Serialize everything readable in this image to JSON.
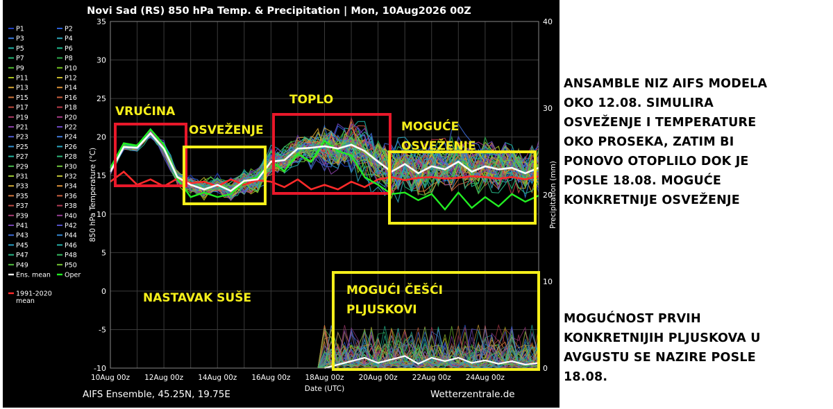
{
  "chart_data": {
    "type": "line",
    "title": "Novi Sad  (RS)  850 hPa Temp. & Precipitation | Mon, 10Aug2026 00Z",
    "xlabel": "Date (UTC)",
    "ylabel": "850 hPa Temperature (°C)",
    "y2label": "Precipitation (mm)",
    "ylim": [
      -10,
      35
    ],
    "y2lim": [
      0,
      40
    ],
    "yticks": [
      "35",
      "30",
      "25",
      "20",
      "15",
      "10",
      "5",
      "0",
      "-5",
      "-10"
    ],
    "y2ticks": [
      "40",
      "30",
      "20",
      "10",
      "0"
    ],
    "xticks": [
      "10Aug 00z",
      "12Aug 00z",
      "14Aug 00z",
      "16Aug 00z",
      "18Aug 00z",
      "20Aug 00z",
      "22Aug 00z",
      "24Aug 00z"
    ],
    "x_days": [
      0,
      16
    ],
    "footer_left": "AIFS Ensemble, 45.25N, 19.75E",
    "footer_right": "Wetterzentrale.de",
    "grid": true,
    "legend_placement": "left",
    "legend": [
      {
        "name": "P1",
        "color": "#1f3fbf"
      },
      {
        "name": "P2",
        "color": "#2b5fd6"
      },
      {
        "name": "P3",
        "color": "#3a7ce0"
      },
      {
        "name": "P4",
        "color": "#2ea6b8"
      },
      {
        "name": "P5",
        "color": "#20b4a8"
      },
      {
        "name": "P6",
        "color": "#1fbf8f"
      },
      {
        "name": "P7",
        "color": "#23b874"
      },
      {
        "name": "P8",
        "color": "#2faa4c"
      },
      {
        "name": "P9",
        "color": "#4dba2f"
      },
      {
        "name": "P10",
        "color": "#74c21f"
      },
      {
        "name": "P11",
        "color": "#a7c21c"
      },
      {
        "name": "P12",
        "color": "#c7b82a"
      },
      {
        "name": "P13",
        "color": "#d6a532"
      },
      {
        "name": "P14",
        "color": "#d88f34"
      },
      {
        "name": "P15",
        "color": "#d2763a"
      },
      {
        "name": "P16",
        "color": "#cc5e3e"
      },
      {
        "name": "P17",
        "color": "#c24a3c"
      },
      {
        "name": "P18",
        "color": "#b93a4a"
      },
      {
        "name": "P19",
        "color": "#b13a66"
      },
      {
        "name": "P20",
        "color": "#a63a86"
      },
      {
        "name": "P21",
        "color": "#8a3fa6"
      },
      {
        "name": "P22",
        "color": "#6a46c0"
      },
      {
        "name": "P23",
        "color": "#4f5bd0"
      },
      {
        "name": "P24",
        "color": "#3f78d8"
      },
      {
        "name": "P25",
        "color": "#3490d0"
      },
      {
        "name": "P26",
        "color": "#2aa6c0"
      },
      {
        "name": "P27",
        "color": "#25b6a0"
      },
      {
        "name": "P28",
        "color": "#2bb67a"
      },
      {
        "name": "P29",
        "color": "#48bd4e"
      },
      {
        "name": "P30",
        "color": "#6fc63c"
      },
      {
        "name": "P31",
        "color": "#9ac832"
      },
      {
        "name": "P32",
        "color": "#bcbf34"
      },
      {
        "name": "P33",
        "color": "#d2ac36"
      },
      {
        "name": "P34",
        "color": "#dc923a"
      },
      {
        "name": "P35",
        "color": "#d6783c"
      },
      {
        "name": "P36",
        "color": "#cc6040"
      },
      {
        "name": "P37",
        "color": "#c04c44"
      },
      {
        "name": "P38",
        "color": "#b43c56"
      },
      {
        "name": "P39",
        "color": "#a83c74"
      },
      {
        "name": "P40",
        "color": "#943e94"
      },
      {
        "name": "P41",
        "color": "#7444b0"
      },
      {
        "name": "P42",
        "color": "#5250c8"
      },
      {
        "name": "P43",
        "color": "#3c6ad4"
      },
      {
        "name": "P44",
        "color": "#3286d0"
      },
      {
        "name": "P45",
        "color": "#2a9ec4"
      },
      {
        "name": "P46",
        "color": "#24b0a8"
      },
      {
        "name": "P47",
        "color": "#28b888"
      },
      {
        "name": "P48",
        "color": "#36bc62"
      },
      {
        "name": "P49",
        "color": "#52c240"
      },
      {
        "name": "P50",
        "color": "#76c832"
      },
      {
        "name": "Ens. mean",
        "color": "#ffffff"
      },
      {
        "name": "Oper",
        "color": "#22ee22"
      },
      {
        "name": "1991-2020 mean",
        "color": "#ff2a2a"
      }
    ],
    "series": [
      {
        "name": "Ens. mean",
        "color": "#ffffff",
        "x": [
          0,
          0.5,
          1,
          1.5,
          2,
          2.5,
          3,
          3.5,
          4,
          4.5,
          5,
          5.5,
          6,
          6.5,
          7,
          7.5,
          8,
          8.5,
          9,
          9.5,
          10,
          10.5,
          11,
          11.5,
          12,
          12.5,
          13,
          13.5,
          14,
          14.5,
          15,
          15.5,
          16
        ],
        "values": [
          15.5,
          18.7,
          18.6,
          20.5,
          18.5,
          14.8,
          13.8,
          13.2,
          13.8,
          13,
          14.3,
          14.5,
          16.8,
          17,
          18.5,
          18.6,
          18.8,
          18.5,
          19,
          18.2,
          16.8,
          15.5,
          16.5,
          15.3,
          16.2,
          15.8,
          16.8,
          15.5,
          16.2,
          15.8,
          16,
          15.3,
          16
        ]
      },
      {
        "name": "1991-2020 mean",
        "color": "#ff2a2a",
        "x": [
          0,
          0.5,
          1,
          1.5,
          2,
          2.5,
          3,
          3.5,
          4,
          4.5,
          5,
          5.5,
          6,
          6.5,
          7,
          7.5,
          8,
          8.5,
          9,
          9.5,
          10,
          10.5,
          11,
          11.5,
          12,
          12.5,
          13,
          13.5,
          14,
          14.5,
          15,
          15.5,
          16
        ],
        "values": [
          14.2,
          15.5,
          13.8,
          14.5,
          13.6,
          14.6,
          14,
          14.2,
          13.6,
          14.5,
          13.8,
          14.4,
          14.2,
          13.5,
          14.5,
          13.2,
          13.8,
          13.2,
          14.2,
          13.5,
          14.5,
          14.8,
          14.4,
          14.7,
          14.8,
          14.6,
          14.7,
          14.9,
          14.8,
          14.6,
          14.8,
          14.5,
          14.9
        ]
      },
      {
        "name": "Oper",
        "color": "#22ee22",
        "x": [
          0,
          0.5,
          1,
          1.5,
          2,
          2.5,
          3,
          3.5,
          4,
          4.5,
          5,
          5.5,
          6,
          6.5,
          7,
          7.5,
          8,
          8.5,
          9,
          9.5,
          10,
          10.5,
          11,
          11.5,
          12,
          12.5,
          13,
          13.5,
          14,
          14.5,
          15,
          15.5,
          16
        ],
        "values": [
          16,
          19.2,
          18.9,
          21,
          19,
          14.6,
          12.2,
          12.8,
          12.2,
          12.6,
          14.2,
          14.8,
          16.8,
          15.6,
          17.8,
          16.8,
          19.5,
          18.2,
          17.6,
          14.8,
          13.8,
          12.6,
          12.8,
          11.8,
          12.6,
          10.6,
          12.8,
          10.8,
          12.2,
          11,
          12.6,
          11.6,
          12.4
        ]
      }
    ],
    "precip": {
      "ens_mean_x": [
        8,
        8.5,
        9,
        9.5,
        10,
        10.5,
        11,
        11.5,
        12,
        12.5,
        13,
        13.5,
        14,
        14.5,
        15,
        15.5,
        16
      ],
      "ens_mean_values": [
        0,
        0.4,
        0.8,
        1.2,
        0.6,
        1,
        1.4,
        0.5,
        1.2,
        0.8,
        1.2,
        0.6,
        0.9,
        0.5,
        0.8,
        0.4,
        0.6
      ]
    }
  },
  "annotations": {
    "vrucina": "VRUĆINA",
    "osvezenje": "OSVEŽENJE",
    "toplo": "TOPLO",
    "moguce_line1": "MOGUĆE",
    "moguce_line2": "OSVEŽENJE",
    "nastavak": "NASTAVAK SUŠE",
    "pljuskovi_line1": "MOGUĆI ČEŠĆI",
    "pljuskovi_line2": "PLJUSKOVI"
  },
  "side_text": {
    "para1": [
      "ANSAMBLE NIZ AIFS MODELA",
      "OKO 12.08. SIMULIRA",
      "OSVEŽENJE I TEMPERATURE",
      "OKO PROSEKA, ZATIM BI",
      "PONOVO OTOPLILO DOK JE",
      "POSLE 18.08. MOGUĆE",
      "KONKRETNIJE OSVEŽENJE"
    ],
    "para2": [
      "MOGUĆNOST PRVIH",
      "KONKRETNIJIH PLJUSKOVA U",
      "AVGUSTU SE NAZIRE POSLE",
      "18.08."
    ]
  },
  "colors": {
    "red_box": "#e8182a",
    "yellow_box": "#f5ef1a",
    "annotation_text": "#f5ef1a",
    "panel_bg": "#000000",
    "text": "#ffffff"
  }
}
